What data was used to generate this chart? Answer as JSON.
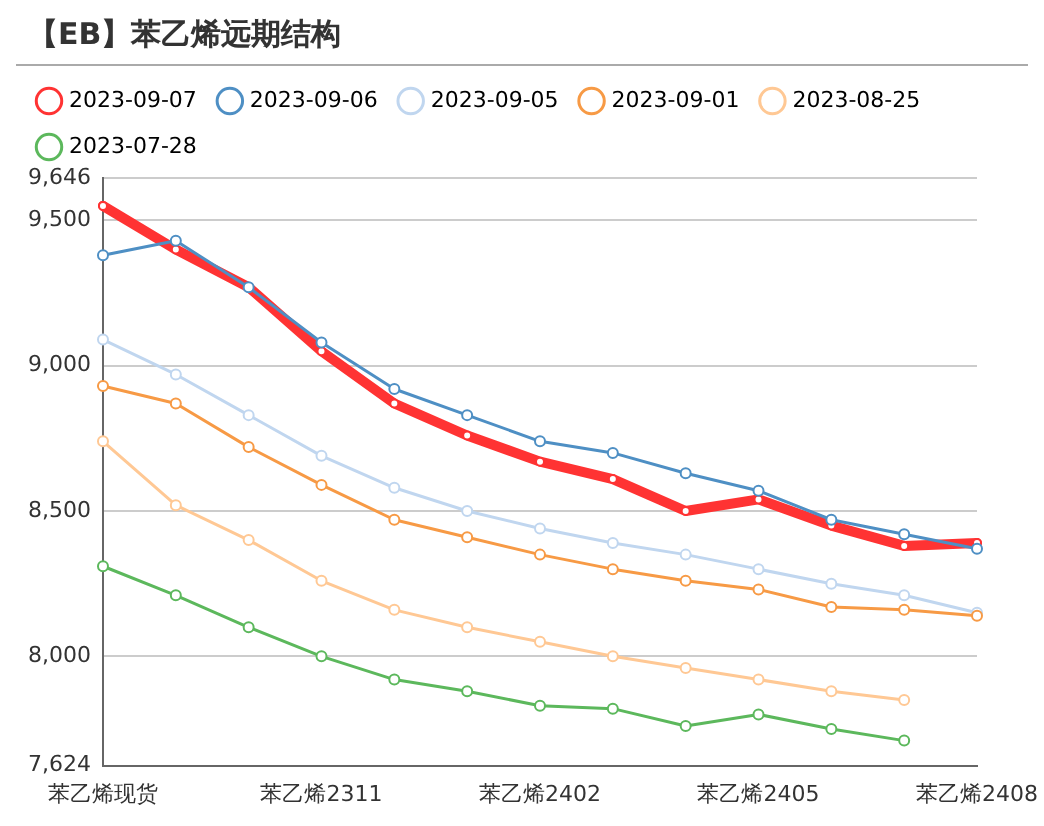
{
  "chart_data": {
    "type": "line",
    "title": "【EB】苯乙烯远期结构",
    "categories": [
      "苯乙烯现货",
      null,
      null,
      "苯乙烯2311",
      null,
      null,
      "苯乙烯2402",
      null,
      null,
      "苯乙烯2405",
      null,
      null,
      "苯乙烯2408"
    ],
    "series": [
      {
        "name": "2023-09-07",
        "color": "#ff3333",
        "values": [
          9550,
          9400,
          9270,
          9050,
          8870,
          8760,
          8670,
          8610,
          8500,
          8540,
          8450,
          8380,
          8390
        ]
      },
      {
        "name": "2023-09-06",
        "color": "#4e8fc4",
        "values": [
          9380,
          9430,
          9270,
          9080,
          8920,
          8830,
          8740,
          8700,
          8630,
          8570,
          8470,
          8420,
          8370
        ]
      },
      {
        "name": "2023-09-05",
        "color": "#c0d6ef",
        "values": [
          9090,
          8970,
          8830,
          8690,
          8580,
          8500,
          8440,
          8390,
          8350,
          8300,
          8250,
          8210,
          8150
        ]
      },
      {
        "name": "2023-09-01",
        "color": "#f79a45",
        "values": [
          8930,
          8870,
          8720,
          8590,
          8470,
          8410,
          8350,
          8300,
          8260,
          8230,
          8170,
          8160,
          8140
        ]
      },
      {
        "name": "2023-08-25",
        "color": "#ffc894",
        "values": [
          8740,
          8520,
          8400,
          8260,
          8160,
          8100,
          8050,
          8000,
          7960,
          7920,
          7880,
          7850,
          null
        ]
      },
      {
        "name": "2023-07-28",
        "color": "#5cb85c",
        "values": [
          8310,
          8210,
          8100,
          8000,
          7920,
          7880,
          7830,
          7820,
          7760,
          7800,
          7750,
          7710,
          null
        ]
      }
    ],
    "ylim": [
      7624,
      9646
    ],
    "yticks": [
      {
        "value": 7624,
        "label": "7,624"
      },
      {
        "value": 8000,
        "label": "8,000"
      },
      {
        "value": 8500,
        "label": "8,500"
      },
      {
        "value": 9000,
        "label": "9,000"
      },
      {
        "value": 9500,
        "label": "9,500"
      },
      {
        "value": 9646,
        "label": "9,646"
      }
    ],
    "grid": "y",
    "legend": "top left",
    "marker": "circle",
    "line_style": "solid"
  }
}
